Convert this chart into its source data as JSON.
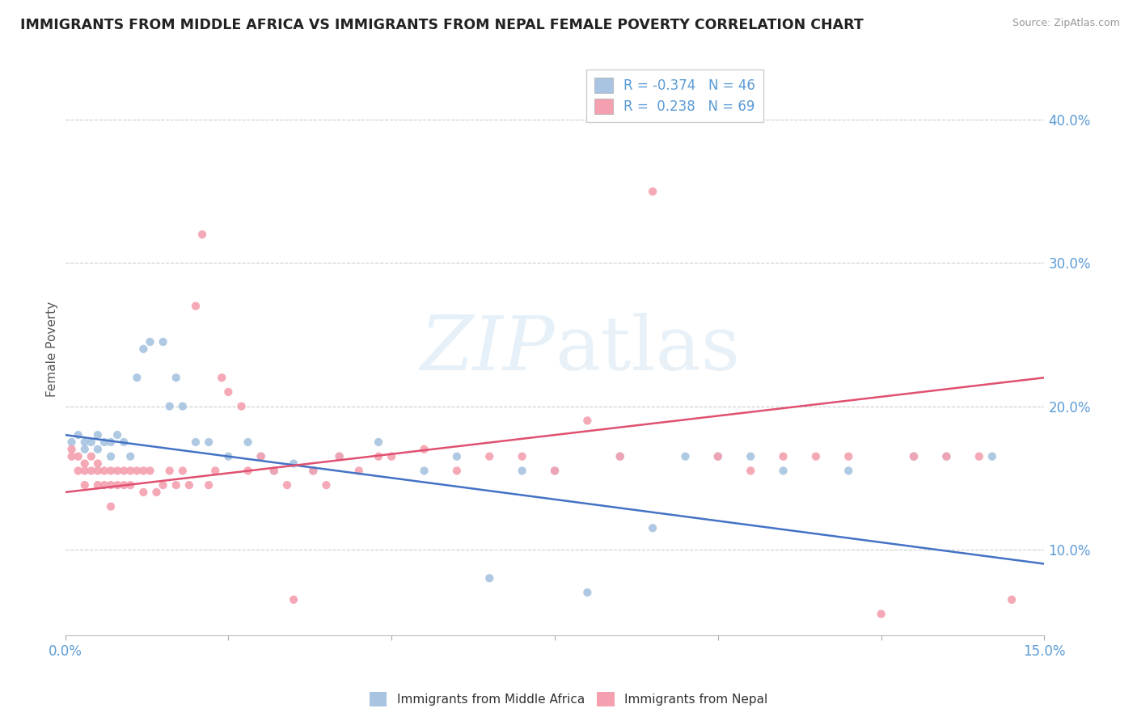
{
  "title": "IMMIGRANTS FROM MIDDLE AFRICA VS IMMIGRANTS FROM NEPAL FEMALE POVERTY CORRELATION CHART",
  "source": "Source: ZipAtlas.com",
  "ylabel": "Female Poverty",
  "xlim": [
    0.0,
    0.15
  ],
  "ylim": [
    0.04,
    0.44
  ],
  "y_ticks": [
    0.1,
    0.2,
    0.3,
    0.4
  ],
  "y_tick_labels": [
    "10.0%",
    "20.0%",
    "30.0%",
    "40.0%"
  ],
  "R_blue": -0.374,
  "N_blue": 46,
  "R_pink": 0.238,
  "N_pink": 69,
  "color_blue": "#a8c4e0",
  "color_pink": "#f4a0b0",
  "line_blue": "#4472c4",
  "line_pink": "#e05070",
  "blue_scatter_x": [
    0.001,
    0.002,
    0.003,
    0.003,
    0.004,
    0.005,
    0.005,
    0.006,
    0.007,
    0.007,
    0.008,
    0.009,
    0.01,
    0.011,
    0.012,
    0.013,
    0.015,
    0.016,
    0.017,
    0.018,
    0.02,
    0.022,
    0.025,
    0.028,
    0.03,
    0.032,
    0.035,
    0.038,
    0.042,
    0.048,
    0.055,
    0.06,
    0.065,
    0.07,
    0.075,
    0.08,
    0.085,
    0.09,
    0.095,
    0.1,
    0.105,
    0.11,
    0.12,
    0.13,
    0.135,
    0.142
  ],
  "blue_scatter_y": [
    0.175,
    0.18,
    0.175,
    0.17,
    0.175,
    0.18,
    0.17,
    0.175,
    0.175,
    0.165,
    0.18,
    0.175,
    0.165,
    0.22,
    0.24,
    0.245,
    0.245,
    0.2,
    0.22,
    0.2,
    0.175,
    0.175,
    0.165,
    0.175,
    0.165,
    0.155,
    0.16,
    0.155,
    0.165,
    0.175,
    0.155,
    0.165,
    0.08,
    0.155,
    0.155,
    0.07,
    0.165,
    0.115,
    0.165,
    0.165,
    0.165,
    0.155,
    0.155,
    0.165,
    0.165,
    0.165
  ],
  "pink_scatter_x": [
    0.001,
    0.001,
    0.002,
    0.002,
    0.003,
    0.003,
    0.003,
    0.004,
    0.004,
    0.005,
    0.005,
    0.005,
    0.006,
    0.006,
    0.007,
    0.007,
    0.007,
    0.008,
    0.008,
    0.009,
    0.009,
    0.01,
    0.01,
    0.011,
    0.012,
    0.012,
    0.013,
    0.014,
    0.015,
    0.016,
    0.017,
    0.018,
    0.019,
    0.02,
    0.021,
    0.022,
    0.023,
    0.024,
    0.025,
    0.027,
    0.028,
    0.03,
    0.032,
    0.034,
    0.035,
    0.038,
    0.04,
    0.042,
    0.045,
    0.048,
    0.05,
    0.055,
    0.06,
    0.065,
    0.07,
    0.075,
    0.08,
    0.085,
    0.09,
    0.1,
    0.105,
    0.11,
    0.115,
    0.12,
    0.125,
    0.13,
    0.135,
    0.14,
    0.145
  ],
  "pink_scatter_y": [
    0.165,
    0.17,
    0.155,
    0.165,
    0.145,
    0.16,
    0.155,
    0.155,
    0.165,
    0.155,
    0.145,
    0.16,
    0.145,
    0.155,
    0.145,
    0.155,
    0.13,
    0.145,
    0.155,
    0.145,
    0.155,
    0.145,
    0.155,
    0.155,
    0.14,
    0.155,
    0.155,
    0.14,
    0.145,
    0.155,
    0.145,
    0.155,
    0.145,
    0.27,
    0.32,
    0.145,
    0.155,
    0.22,
    0.21,
    0.2,
    0.155,
    0.165,
    0.155,
    0.145,
    0.065,
    0.155,
    0.145,
    0.165,
    0.155,
    0.165,
    0.165,
    0.17,
    0.155,
    0.165,
    0.165,
    0.155,
    0.19,
    0.165,
    0.35,
    0.165,
    0.155,
    0.165,
    0.165,
    0.165,
    0.055,
    0.165,
    0.165,
    0.165,
    0.065
  ]
}
